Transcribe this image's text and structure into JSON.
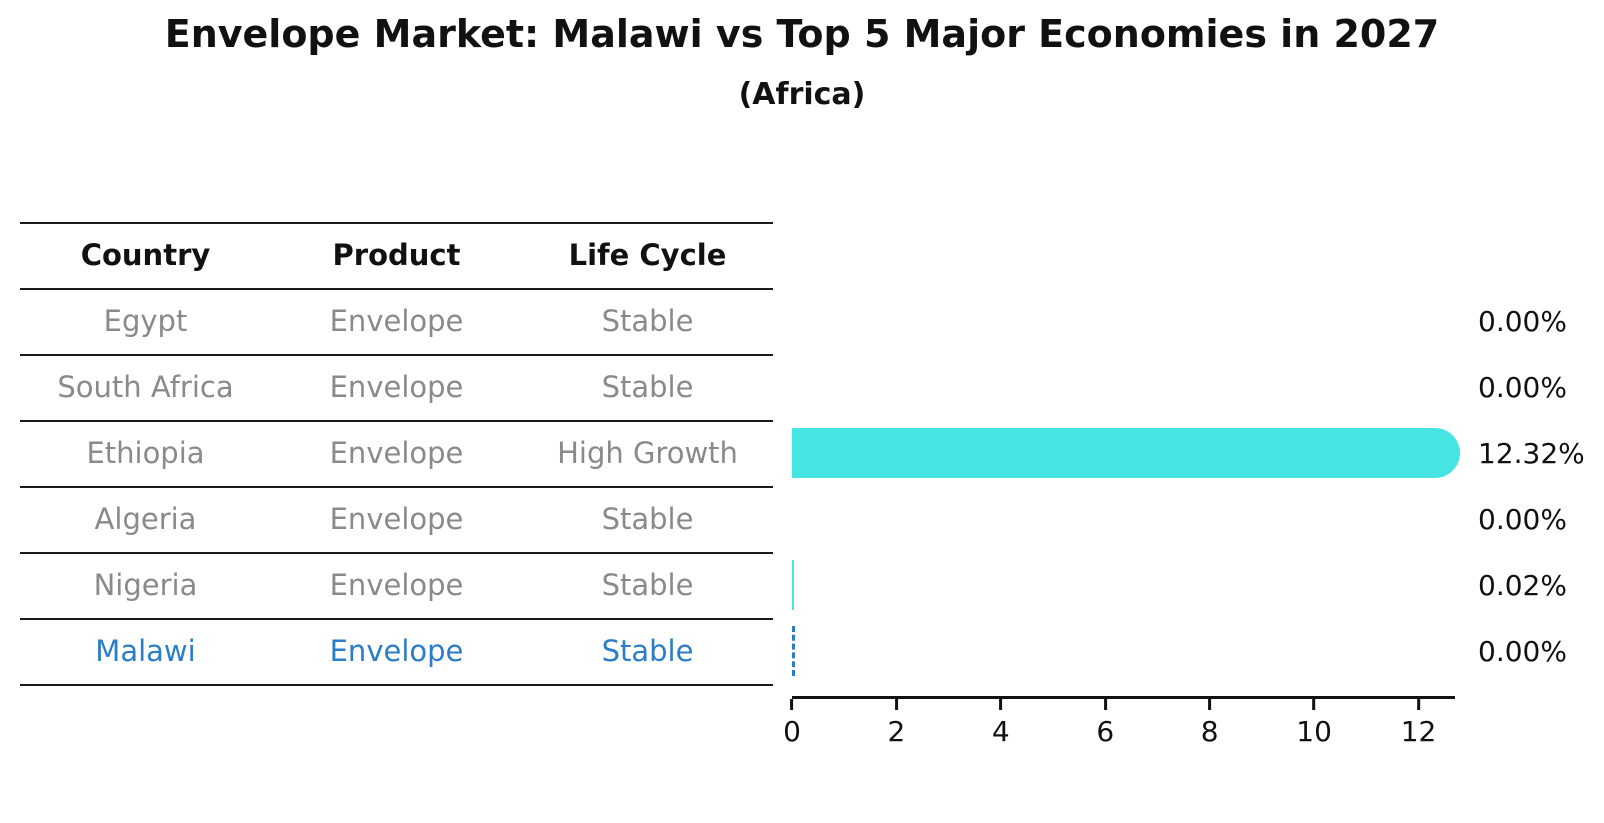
{
  "title": "Envelope Market: Malawi vs Top 5 Major Economies in 2027",
  "subtitle": "(Africa)",
  "table": {
    "headers": [
      "Country",
      "Product",
      "Life Cycle"
    ],
    "rows": [
      {
        "country": "Egypt",
        "product": "Envelope",
        "life_cycle": "Stable",
        "highlighted": false
      },
      {
        "country": "South Africa",
        "product": "Envelope",
        "life_cycle": "Stable",
        "highlighted": false
      },
      {
        "country": "Ethiopia",
        "product": "Envelope",
        "life_cycle": "High Growth",
        "highlighted": false
      },
      {
        "country": "Algeria",
        "product": "Envelope",
        "life_cycle": "Stable",
        "highlighted": false
      },
      {
        "country": "Nigeria",
        "product": "Envelope",
        "life_cycle": "Stable",
        "highlighted": false
      },
      {
        "country": "Malawi",
        "product": "Envelope",
        "life_cycle": "Stable",
        "highlighted": true
      }
    ]
  },
  "chart_data": {
    "type": "bar",
    "orientation": "horizontal",
    "title": "Envelope Market: Malawi vs Top 5 Major Economies in 2027",
    "subtitle": "(Africa)",
    "categories": [
      "Egypt",
      "South Africa",
      "Ethiopia",
      "Algeria",
      "Nigeria",
      "Malawi"
    ],
    "values": [
      0.0,
      0.0,
      12.32,
      0.0,
      0.02,
      0.0
    ],
    "value_labels": [
      "0.00%",
      "0.00%",
      "12.32%",
      "0.00%",
      "0.02%",
      "0.00%"
    ],
    "markers": [
      "none",
      "none",
      "bar",
      "none",
      "bar",
      "dashed"
    ],
    "x_ticks": [
      "0",
      "2",
      "4",
      "6",
      "8",
      "10",
      "12"
    ],
    "xlim": [
      0,
      12.66
    ],
    "grid": false,
    "legend": false,
    "bar_color": "#46e5e2",
    "highlight_color": "#2c7dc9",
    "muted_text_color": "#8a8a8a",
    "text_color": "#111111"
  }
}
